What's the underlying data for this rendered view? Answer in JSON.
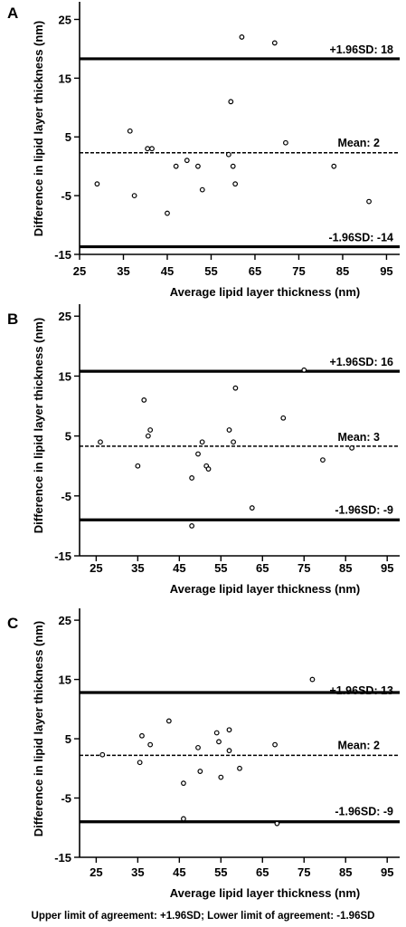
{
  "chart_data": [
    {
      "type": "scatter",
      "panel": "A",
      "xlabel": "Average lipid layer thickness (nm)",
      "ylabel": "Difference in lipid layer thickness (nm)",
      "xlim": [
        25,
        98
      ],
      "ylim": [
        -15,
        28
      ],
      "xticks": [
        25,
        35,
        45,
        55,
        65,
        75,
        85,
        95
      ],
      "yticks": [
        -15,
        -5,
        5,
        15,
        25
      ],
      "points": [
        {
          "x": 29,
          "y": -3
        },
        {
          "x": 36.5,
          "y": 6
        },
        {
          "x": 37.5,
          "y": -5
        },
        {
          "x": 40.5,
          "y": 3
        },
        {
          "x": 41.5,
          "y": 3
        },
        {
          "x": 45,
          "y": -8
        },
        {
          "x": 47,
          "y": 0
        },
        {
          "x": 49.5,
          "y": 1
        },
        {
          "x": 52,
          "y": 0
        },
        {
          "x": 53,
          "y": -4
        },
        {
          "x": 59,
          "y": 2
        },
        {
          "x": 59.5,
          "y": 11
        },
        {
          "x": 60,
          "y": 0
        },
        {
          "x": 60.5,
          "y": -3
        },
        {
          "x": 62,
          "y": 22
        },
        {
          "x": 69.5,
          "y": 21
        },
        {
          "x": 72,
          "y": 4
        },
        {
          "x": 83,
          "y": 0
        },
        {
          "x": 91,
          "y": -6
        }
      ],
      "lines": [
        {
          "kind": "upper",
          "value": 18.3,
          "label": "+1.96SD: 18",
          "style": "solid"
        },
        {
          "kind": "mean",
          "value": 2.3,
          "label": "Mean:  2",
          "style": "dashed"
        },
        {
          "kind": "lower",
          "value": -13.7,
          "label": "-1.96SD: -14",
          "style": "solid"
        }
      ]
    },
    {
      "type": "scatter",
      "panel": "B",
      "xlabel": "Average lipid layer thickness (nm)",
      "ylabel": "Difference in lipid layer thickness (nm)",
      "xlim": [
        21,
        98
      ],
      "ylim": [
        -15,
        27
      ],
      "xticks": [
        25,
        35,
        45,
        55,
        65,
        75,
        85,
        95
      ],
      "yticks": [
        -15,
        -5,
        5,
        15,
        25
      ],
      "points": [
        {
          "x": 26,
          "y": 4
        },
        {
          "x": 35,
          "y": 0
        },
        {
          "x": 36.5,
          "y": 11
        },
        {
          "x": 37.5,
          "y": 5
        },
        {
          "x": 38,
          "y": 6
        },
        {
          "x": 48,
          "y": -10
        },
        {
          "x": 48,
          "y": -2
        },
        {
          "x": 49.5,
          "y": 2
        },
        {
          "x": 50.5,
          "y": 4
        },
        {
          "x": 51.5,
          "y": 0
        },
        {
          "x": 52,
          "y": -0.5
        },
        {
          "x": 57,
          "y": 6
        },
        {
          "x": 58,
          "y": 4
        },
        {
          "x": 58.5,
          "y": 13
        },
        {
          "x": 62.5,
          "y": -7
        },
        {
          "x": 70,
          "y": 8
        },
        {
          "x": 75,
          "y": 16
        },
        {
          "x": 79.5,
          "y": 1
        },
        {
          "x": 86.5,
          "y": 3
        }
      ],
      "lines": [
        {
          "kind": "upper",
          "value": 15.8,
          "label": "+1.96SD: 16",
          "style": "solid"
        },
        {
          "kind": "mean",
          "value": 3.3,
          "label": "Mean:  3",
          "style": "dashed"
        },
        {
          "kind": "lower",
          "value": -9,
          "label": "-1.96SD:  -9",
          "style": "solid"
        }
      ]
    },
    {
      "type": "scatter",
      "panel": "C",
      "xlabel": "Average lipid layer thickness (nm)",
      "ylabel": "Difference in lipid layer thickness (nm)",
      "xlim": [
        21,
        98
      ],
      "ylim": [
        -15,
        27
      ],
      "xticks": [
        25,
        35,
        45,
        55,
        65,
        75,
        85,
        95
      ],
      "yticks": [
        -15,
        -5,
        5,
        15,
        25
      ],
      "points": [
        {
          "x": 26.5,
          "y": 2.3
        },
        {
          "x": 35.5,
          "y": 1
        },
        {
          "x": 36,
          "y": 5.5
        },
        {
          "x": 38,
          "y": 4
        },
        {
          "x": 42.5,
          "y": 8
        },
        {
          "x": 46,
          "y": -2.5
        },
        {
          "x": 46,
          "y": -8.5
        },
        {
          "x": 49.5,
          "y": 3.5
        },
        {
          "x": 50,
          "y": -0.5
        },
        {
          "x": 54,
          "y": 6
        },
        {
          "x": 54.5,
          "y": 4.5
        },
        {
          "x": 55,
          "y": -1.5
        },
        {
          "x": 57,
          "y": 3
        },
        {
          "x": 57,
          "y": 6.5
        },
        {
          "x": 59.5,
          "y": 0
        },
        {
          "x": 68,
          "y": 4
        },
        {
          "x": 68.5,
          "y": -9.3
        },
        {
          "x": 77,
          "y": 15
        }
      ],
      "lines": [
        {
          "kind": "upper",
          "value": 12.8,
          "label": "+1.96SD: 13",
          "style": "solid"
        },
        {
          "kind": "mean",
          "value": 2.2,
          "label": "Mean:  2",
          "style": "dashed"
        },
        {
          "kind": "lower",
          "value": -9,
          "label": "-1.96SD:  -9",
          "style": "solid"
        }
      ]
    }
  ],
  "footer": "Upper limit of agreement: +1.96SD; Lower limit of agreement: -1.96SD",
  "colors": {
    "ink": "#000000",
    "background": "#ffffff",
    "marker_fill": "#ffffff"
  }
}
